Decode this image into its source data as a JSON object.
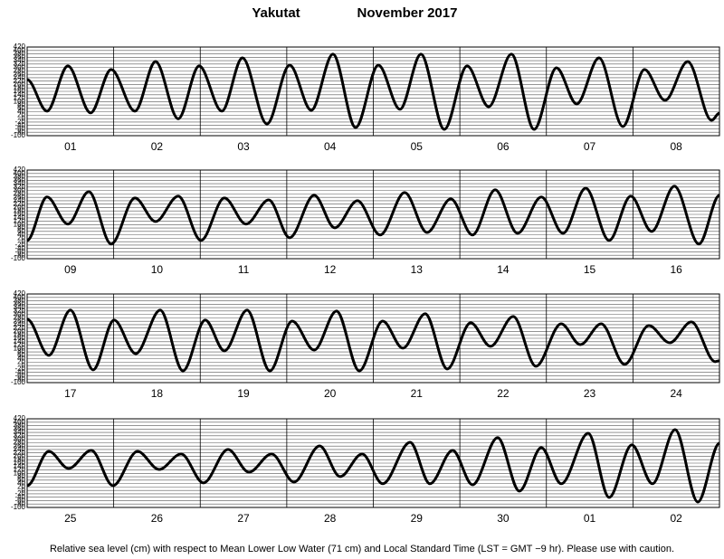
{
  "title": "Yakutat",
  "subtitle": "November  2017",
  "footnote": "Relative sea level (cm) with respect to Mean Lower Low Water (71 cm) and Local Standard Time (LST = GMT −9 hr). Please use with caution.",
  "chart_data": [
    {
      "type": "line",
      "categories": [
        "01",
        "02",
        "03",
        "04",
        "05",
        "06",
        "07",
        "08"
      ],
      "xlim": [
        0,
        192
      ],
      "ylim": [
        -100,
        420
      ],
      "yticks": [
        -100,
        -80,
        -60,
        -40,
        -20,
        0,
        20,
        40,
        60,
        80,
        100,
        120,
        140,
        160,
        180,
        200,
        220,
        240,
        260,
        280,
        300,
        320,
        340,
        360,
        380,
        400,
        420
      ],
      "grid": true,
      "color": "#000000",
      "x": [
        0,
        5.5,
        11.3,
        17.6,
        23.3,
        29.9,
        35.6,
        41.9,
        47.7,
        54.0,
        59.7,
        66.5,
        72.8,
        78.8,
        84.8,
        91.1,
        97.4,
        103.4,
        109.2,
        115.7,
        122.0,
        128.0,
        134.3,
        140.6,
        146.8,
        152.4,
        158.6,
        165.2,
        171.2,
        176.9,
        183.2,
        189.8,
        192
      ],
      "values": [
        229,
        44,
        309,
        34,
        288,
        44,
        335,
        -1,
        309,
        44,
        356,
        -31,
        314,
        49,
        378,
        -52,
        314,
        55,
        378,
        -63,
        309,
        70,
        378,
        -63,
        298,
        86,
        356,
        -46,
        288,
        107,
        335,
        -10,
        32
      ]
    },
    {
      "type": "line",
      "categories": [
        "09",
        "10",
        "11",
        "12",
        "13",
        "14",
        "15",
        "16"
      ],
      "xlim": [
        0,
        192
      ],
      "ylim": [
        -100,
        420
      ],
      "yticks": [
        -100,
        -80,
        -60,
        -40,
        -20,
        0,
        20,
        40,
        60,
        80,
        100,
        120,
        140,
        160,
        180,
        200,
        220,
        240,
        260,
        280,
        300,
        320,
        340,
        360,
        380,
        400,
        420
      ],
      "grid": true,
      "color": "#000000",
      "x": [
        0,
        5.5,
        11.3,
        17.1,
        23.3,
        29.9,
        35.6,
        41.9,
        48.2,
        54.7,
        60.7,
        67.0,
        72.8,
        79.6,
        85.3,
        91.6,
        97.9,
        104.7,
        110.9,
        117.5,
        123.5,
        129.8,
        136.0,
        142.6,
        148.6,
        154.9,
        161.4,
        167.4,
        173.2,
        179.5,
        186.3,
        192
      ],
      "values": [
        7,
        262,
        103,
        293,
        -14,
        256,
        118,
        267,
        7,
        256,
        103,
        245,
        23,
        272,
        81,
        240,
        39,
        288,
        54,
        251,
        39,
        304,
        49,
        262,
        49,
        314,
        7,
        267,
        60,
        325,
        -14,
        272
      ]
    },
    {
      "type": "line",
      "categories": [
        "17",
        "18",
        "19",
        "20",
        "21",
        "22",
        "23",
        "24"
      ],
      "xlim": [
        0,
        192
      ],
      "ylim": [
        -100,
        420
      ],
      "yticks": [
        -100,
        -80,
        -60,
        -40,
        -20,
        0,
        20,
        40,
        60,
        80,
        100,
        120,
        140,
        160,
        180,
        200,
        220,
        240,
        260,
        280,
        300,
        320,
        340,
        360,
        380,
        400,
        420
      ],
      "grid": true,
      "color": "#000000",
      "x": [
        0,
        6.0,
        12.0,
        18.3,
        24.1,
        30.1,
        36.9,
        43.2,
        49.4,
        54.7,
        61.0,
        67.3,
        73.5,
        79.6,
        85.8,
        92.1,
        98.6,
        104.2,
        110.4,
        116.5,
        123.0,
        128.5,
        134.8,
        141.1,
        148.1,
        153.4,
        159.2,
        165.7,
        172.4,
        178.2,
        184.2,
        190.8,
        192
      ],
      "values": [
        272,
        60,
        325,
        -25,
        267,
        70,
        325,
        -31,
        267,
        86,
        325,
        -31,
        261,
        91,
        320,
        -31,
        261,
        102,
        304,
        -20,
        251,
        113,
        288,
        -4,
        245,
        123,
        245,
        7,
        235,
        134,
        256,
        23,
        28
      ]
    },
    {
      "type": "line",
      "categories": [
        "25",
        "26",
        "27",
        "28",
        "29",
        "30",
        "01",
        "02"
      ],
      "xlim": [
        0,
        192
      ],
      "ylim": [
        -100,
        420
      ],
      "yticks": [
        -100,
        -80,
        -60,
        -40,
        -20,
        0,
        20,
        40,
        60,
        80,
        100,
        120,
        140,
        160,
        180,
        200,
        220,
        240,
        260,
        280,
        300,
        320,
        340,
        360,
        380,
        400,
        420
      ],
      "grid": true,
      "color": "#000000",
      "x": [
        0,
        6.0,
        11.5,
        17.8,
        23.8,
        30.6,
        36.6,
        42.7,
        48.9,
        55.7,
        61.5,
        67.8,
        74.0,
        81.1,
        86.8,
        92.9,
        98.6,
        106.2,
        111.7,
        118.0,
        123.5,
        130.5,
        136.5,
        142.6,
        148.1,
        155.6,
        161.4,
        167.7,
        173.4,
        179.7,
        186.0,
        192
      ],
      "values": [
        28,
        229,
        129,
        235,
        28,
        229,
        123,
        214,
        44,
        240,
        107,
        214,
        49,
        261,
        81,
        214,
        39,
        282,
        39,
        235,
        33,
        309,
        -4,
        251,
        39,
        335,
        -41,
        267,
        39,
        356,
        -68,
        277
      ]
    }
  ]
}
